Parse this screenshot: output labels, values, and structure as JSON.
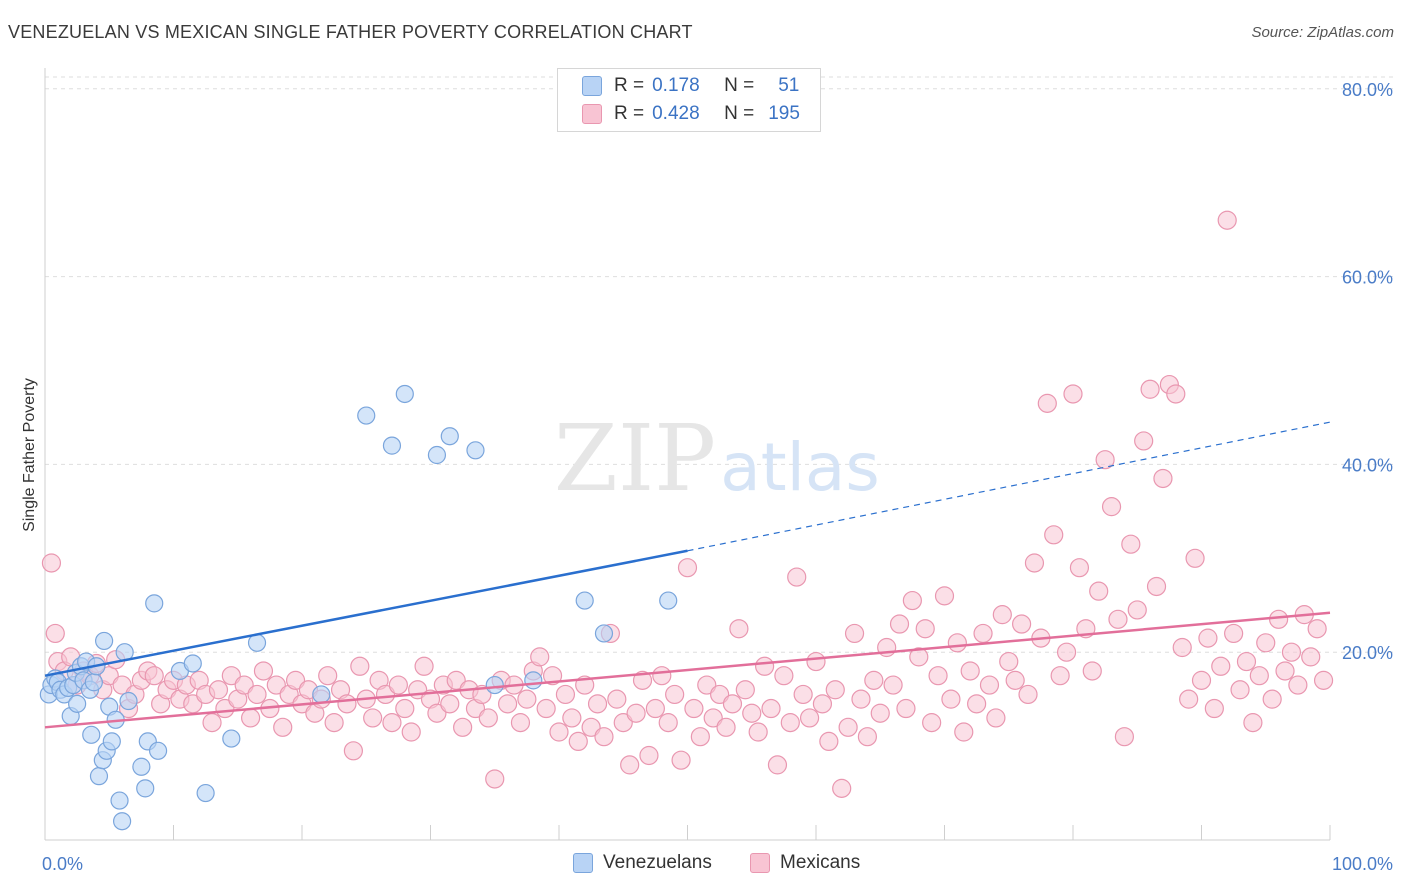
{
  "title": "VENEZUELAN VS MEXICAN SINGLE FATHER POVERTY CORRELATION CHART",
  "source": "Source: ZipAtlas.com",
  "watermark": {
    "zip": "ZIP",
    "atlas": "atlas"
  },
  "legend_stats": [
    {
      "r_label": "R =",
      "r_value": "0.178",
      "n_label": "N =",
      "n_value": "51"
    },
    {
      "r_label": "R =",
      "r_value": "0.428",
      "n_label": "N =",
      "n_value": "195"
    }
  ],
  "colors": {
    "venezuelan_fill": "#b8d3f5",
    "venezuelan_stroke": "#7aa5dc",
    "venezuelan_line": "#2a6fce",
    "mexican_fill": "#f8c4d3",
    "mexican_stroke": "#e997b0",
    "mexican_line": "#e26f9a",
    "tick_text": "#4a7cc7",
    "grid": "#dedede"
  },
  "chart_data": {
    "type": "scatter",
    "title": "VENEZUELAN VS MEXICAN SINGLE FATHER POVERTY CORRELATION CHART",
    "xlabel": "",
    "ylabel": "Single Father Poverty",
    "xlim": [
      0,
      100
    ],
    "ylim": [
      0,
      82
    ],
    "x_tick_labels": [
      "0.0%",
      "100.0%"
    ],
    "y_ticks": [
      20,
      40,
      60,
      80
    ],
    "y_tick_labels": [
      "20.0%",
      "40.0%",
      "60.0%",
      "80.0%"
    ],
    "grid": true,
    "legend_position": "bottom-center",
    "series": [
      {
        "name": "Venezuelans",
        "r": 0.178,
        "n": 51,
        "trend": {
          "x0": 0,
          "y0": 17.5,
          "x1": 50,
          "y1": 30.8,
          "dashed_to_x": 100,
          "dashed_to_y": 44.5
        },
        "points": [
          [
            0.3,
            15.5
          ],
          [
            0.5,
            16.5
          ],
          [
            0.8,
            17.2
          ],
          [
            1.0,
            16.8
          ],
          [
            1.2,
            16.0
          ],
          [
            1.5,
            15.5
          ],
          [
            1.8,
            16.2
          ],
          [
            2.0,
            13.2
          ],
          [
            2.2,
            16.5
          ],
          [
            2.4,
            17.8
          ],
          [
            2.5,
            14.5
          ],
          [
            2.8,
            18.5
          ],
          [
            3.0,
            17.0
          ],
          [
            3.2,
            19.0
          ],
          [
            3.5,
            16.0
          ],
          [
            3.6,
            11.2
          ],
          [
            3.8,
            16.8
          ],
          [
            4.0,
            18.5
          ],
          [
            4.2,
            6.8
          ],
          [
            4.5,
            8.5
          ],
          [
            4.6,
            21.2
          ],
          [
            4.8,
            9.5
          ],
          [
            5.0,
            14.2
          ],
          [
            5.2,
            10.5
          ],
          [
            5.5,
            12.8
          ],
          [
            5.8,
            4.2
          ],
          [
            6.0,
            2.0
          ],
          [
            6.2,
            20.0
          ],
          [
            6.5,
            14.8
          ],
          [
            7.5,
            7.8
          ],
          [
            7.8,
            5.5
          ],
          [
            8.0,
            10.5
          ],
          [
            8.5,
            25.2
          ],
          [
            8.8,
            9.5
          ],
          [
            10.5,
            18.0
          ],
          [
            11.5,
            18.8
          ],
          [
            12.5,
            5.0
          ],
          [
            14.5,
            10.8
          ],
          [
            16.5,
            21.0
          ],
          [
            21.5,
            15.5
          ],
          [
            25.0,
            45.2
          ],
          [
            27.0,
            42.0
          ],
          [
            28.0,
            47.5
          ],
          [
            30.5,
            41.0
          ],
          [
            31.5,
            43.0
          ],
          [
            33.5,
            41.5
          ],
          [
            35.0,
            16.5
          ],
          [
            38.0,
            17.0
          ],
          [
            42.0,
            25.5
          ],
          [
            43.5,
            22.0
          ],
          [
            48.5,
            25.5
          ]
        ]
      },
      {
        "name": "Mexicans",
        "r": 0.428,
        "n": 195,
        "trend": {
          "x0": 0,
          "y0": 12.0,
          "x1": 100,
          "y1": 24.2
        },
        "points": [
          [
            0.5,
            29.5
          ],
          [
            0.8,
            22.0
          ],
          [
            1.0,
            19.0
          ],
          [
            1.5,
            18.0
          ],
          [
            2.0,
            19.5
          ],
          [
            2.5,
            16.5
          ],
          [
            3.0,
            18.0
          ],
          [
            3.5,
            17.5
          ],
          [
            4.0,
            18.8
          ],
          [
            4.5,
            16.0
          ],
          [
            5.0,
            17.5
          ],
          [
            5.5,
            19.2
          ],
          [
            6.0,
            16.5
          ],
          [
            6.5,
            14.0
          ],
          [
            7.0,
            15.5
          ],
          [
            7.5,
            17.0
          ],
          [
            8.0,
            18.0
          ],
          [
            8.5,
            17.5
          ],
          [
            9.0,
            14.5
          ],
          [
            9.5,
            16.0
          ],
          [
            10.0,
            17.0
          ],
          [
            10.5,
            15.0
          ],
          [
            11.0,
            16.5
          ],
          [
            11.5,
            14.5
          ],
          [
            12.0,
            17.0
          ],
          [
            12.5,
            15.5
          ],
          [
            13.0,
            12.5
          ],
          [
            13.5,
            16.0
          ],
          [
            14.0,
            14.0
          ],
          [
            14.5,
            17.5
          ],
          [
            15.0,
            15.0
          ],
          [
            15.5,
            16.5
          ],
          [
            16.0,
            13.0
          ],
          [
            16.5,
            15.5
          ],
          [
            17.0,
            18.0
          ],
          [
            17.5,
            14.0
          ],
          [
            18.0,
            16.5
          ],
          [
            18.5,
            12.0
          ],
          [
            19.0,
            15.5
          ],
          [
            19.5,
            17.0
          ],
          [
            20.0,
            14.5
          ],
          [
            20.5,
            16.0
          ],
          [
            21.0,
            13.5
          ],
          [
            21.5,
            15.0
          ],
          [
            22.0,
            17.5
          ],
          [
            22.5,
            12.5
          ],
          [
            23.0,
            16.0
          ],
          [
            23.5,
            14.5
          ],
          [
            24.0,
            9.5
          ],
          [
            24.5,
            18.5
          ],
          [
            25.0,
            15.0
          ],
          [
            25.5,
            13.0
          ],
          [
            26.0,
            17.0
          ],
          [
            26.5,
            15.5
          ],
          [
            27.0,
            12.5
          ],
          [
            27.5,
            16.5
          ],
          [
            28.0,
            14.0
          ],
          [
            28.5,
            11.5
          ],
          [
            29.0,
            16.0
          ],
          [
            29.5,
            18.5
          ],
          [
            30.0,
            15.0
          ],
          [
            30.5,
            13.5
          ],
          [
            31.0,
            16.5
          ],
          [
            31.5,
            14.5
          ],
          [
            32.0,
            17.0
          ],
          [
            32.5,
            12.0
          ],
          [
            33.0,
            16.0
          ],
          [
            33.5,
            14.0
          ],
          [
            34.0,
            15.5
          ],
          [
            34.5,
            13.0
          ],
          [
            35.0,
            6.5
          ],
          [
            35.5,
            17.0
          ],
          [
            36.0,
            14.5
          ],
          [
            36.5,
            16.5
          ],
          [
            37.0,
            12.5
          ],
          [
            37.5,
            15.0
          ],
          [
            38.0,
            18.0
          ],
          [
            38.5,
            19.5
          ],
          [
            39.0,
            14.0
          ],
          [
            39.5,
            17.5
          ],
          [
            40.0,
            11.5
          ],
          [
            40.5,
            15.5
          ],
          [
            41.0,
            13.0
          ],
          [
            41.5,
            10.5
          ],
          [
            42.0,
            16.5
          ],
          [
            42.5,
            12.0
          ],
          [
            43.0,
            14.5
          ],
          [
            43.5,
            11.0
          ],
          [
            44.0,
            22.0
          ],
          [
            44.5,
            15.0
          ],
          [
            45.0,
            12.5
          ],
          [
            45.5,
            8.0
          ],
          [
            46.0,
            13.5
          ],
          [
            46.5,
            17.0
          ],
          [
            47.0,
            9.0
          ],
          [
            47.5,
            14.0
          ],
          [
            48.0,
            17.5
          ],
          [
            48.5,
            12.5
          ],
          [
            49.0,
            15.5
          ],
          [
            49.5,
            8.5
          ],
          [
            50.0,
            29.0
          ],
          [
            50.5,
            14.0
          ],
          [
            51.0,
            11.0
          ],
          [
            51.5,
            16.5
          ],
          [
            52.0,
            13.0
          ],
          [
            52.5,
            15.5
          ],
          [
            53.0,
            12.0
          ],
          [
            53.5,
            14.5
          ],
          [
            54.0,
            22.5
          ],
          [
            54.5,
            16.0
          ],
          [
            55.0,
            13.5
          ],
          [
            55.5,
            11.5
          ],
          [
            56.0,
            18.5
          ],
          [
            56.5,
            14.0
          ],
          [
            57.0,
            8.0
          ],
          [
            57.5,
            17.5
          ],
          [
            58.0,
            12.5
          ],
          [
            58.5,
            28.0
          ],
          [
            59.0,
            15.5
          ],
          [
            59.5,
            13.0
          ],
          [
            60.0,
            19.0
          ],
          [
            60.5,
            14.5
          ],
          [
            61.0,
            10.5
          ],
          [
            61.5,
            16.0
          ],
          [
            62.0,
            5.5
          ],
          [
            62.5,
            12.0
          ],
          [
            63.0,
            22.0
          ],
          [
            63.5,
            15.0
          ],
          [
            64.0,
            11.0
          ],
          [
            64.5,
            17.0
          ],
          [
            65.0,
            13.5
          ],
          [
            65.5,
            20.5
          ],
          [
            66.0,
            16.5
          ],
          [
            66.5,
            23.0
          ],
          [
            67.0,
            14.0
          ],
          [
            67.5,
            25.5
          ],
          [
            68.0,
            19.5
          ],
          [
            68.5,
            22.5
          ],
          [
            69.0,
            12.5
          ],
          [
            69.5,
            17.5
          ],
          [
            70.0,
            26.0
          ],
          [
            70.5,
            15.0
          ],
          [
            71.0,
            21.0
          ],
          [
            71.5,
            11.5
          ],
          [
            72.0,
            18.0
          ],
          [
            72.5,
            14.5
          ],
          [
            73.0,
            22.0
          ],
          [
            73.5,
            16.5
          ],
          [
            74.0,
            13.0
          ],
          [
            74.5,
            24.0
          ],
          [
            75.0,
            19.0
          ],
          [
            75.5,
            17.0
          ],
          [
            76.0,
            23.0
          ],
          [
            76.5,
            15.5
          ],
          [
            77.0,
            29.5
          ],
          [
            77.5,
            21.5
          ],
          [
            78.0,
            46.5
          ],
          [
            78.5,
            32.5
          ],
          [
            79.0,
            17.5
          ],
          [
            79.5,
            20.0
          ],
          [
            80.0,
            47.5
          ],
          [
            80.5,
            29.0
          ],
          [
            81.0,
            22.5
          ],
          [
            81.5,
            18.0
          ],
          [
            82.0,
            26.5
          ],
          [
            82.5,
            40.5
          ],
          [
            83.0,
            35.5
          ],
          [
            83.5,
            23.5
          ],
          [
            84.0,
            11.0
          ],
          [
            84.5,
            31.5
          ],
          [
            85.0,
            24.5
          ],
          [
            85.5,
            42.5
          ],
          [
            86.0,
            48.0
          ],
          [
            86.5,
            27.0
          ],
          [
            87.0,
            38.5
          ],
          [
            87.5,
            48.5
          ],
          [
            88.0,
            47.5
          ],
          [
            88.5,
            20.5
          ],
          [
            89.0,
            15.0
          ],
          [
            89.5,
            30.0
          ],
          [
            90.0,
            17.0
          ],
          [
            90.5,
            21.5
          ],
          [
            91.0,
            14.0
          ],
          [
            91.5,
            18.5
          ],
          [
            92.0,
            66.0
          ],
          [
            92.5,
            22.0
          ],
          [
            93.0,
            16.0
          ],
          [
            93.5,
            19.0
          ],
          [
            94.0,
            12.5
          ],
          [
            94.5,
            17.5
          ],
          [
            95.0,
            21.0
          ],
          [
            95.5,
            15.0
          ],
          [
            96.0,
            23.5
          ],
          [
            96.5,
            18.0
          ],
          [
            97.0,
            20.0
          ],
          [
            97.5,
            16.5
          ],
          [
            98.0,
            24.0
          ],
          [
            98.5,
            19.5
          ],
          [
            99.0,
            22.5
          ],
          [
            99.5,
            17.0
          ]
        ]
      }
    ]
  }
}
